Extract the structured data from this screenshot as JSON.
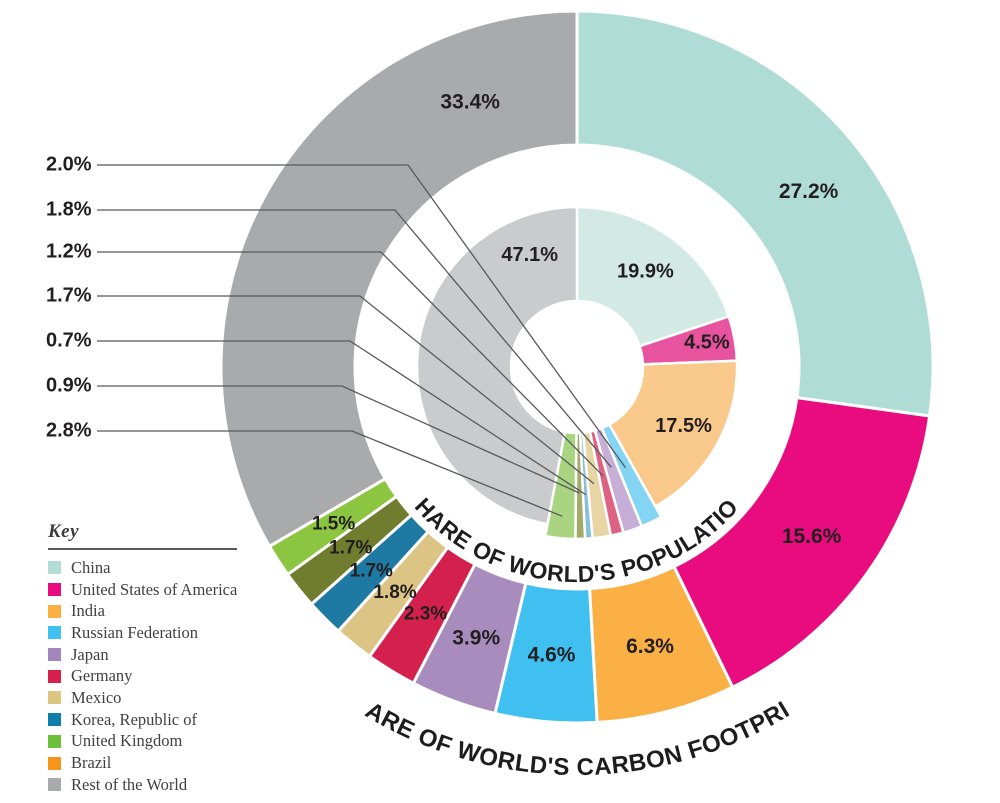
{
  "chart_data": {
    "type": "nested_donut",
    "inner_title": "SHARE OF WORLD'S POPULATION",
    "outer_title": "SHARE OF WORLD'S CARBON FOOTPRINT",
    "label_format": "percent_one_decimal",
    "legend_position": "bottom-left",
    "categories": [
      "China",
      "United States of America",
      "India",
      "Russian Federation",
      "Japan",
      "Germany",
      "Mexico",
      "Korea, Republic of",
      "United Kingdom",
      "Brazil",
      "Rest of the World"
    ],
    "series": [
      {
        "name": "SHARE OF WORLD'S POPULATION",
        "ring": "inner",
        "values": [
          19.9,
          4.5,
          17.5,
          2.0,
          1.8,
          1.2,
          1.7,
          0.7,
          0.9,
          2.8,
          47.1
        ],
        "colors": [
          "#d2e9e4",
          "#e7539e",
          "#f8c98b",
          "#84d4f4",
          "#c7aed6",
          "#de6283",
          "#e7d5a4",
          "#85c1dc",
          "#a5aa6a",
          "#a9d480",
          "#c9cbcd"
        ]
      },
      {
        "name": "SHARE OF WORLD'S CARBON FOOTPRINT",
        "ring": "outer",
        "values": [
          27.2,
          15.6,
          6.3,
          4.6,
          3.9,
          2.3,
          1.8,
          1.7,
          1.7,
          1.5,
          33.4
        ],
        "colors": [
          "#b0dcd6",
          "#e90c7e",
          "#fbb045",
          "#3fc0f0",
          "#a88cbe",
          "#d4204c",
          "#dcc485",
          "#1e79a3",
          "#707d2f",
          "#8cc640",
          "#a9aaac"
        ]
      }
    ],
    "callouts": {
      "labels": [
        "2.0%",
        "1.8%",
        "1.2%",
        "1.7%",
        "0.7%",
        "0.9%",
        "2.8%"
      ],
      "categories": [
        "Russian Federation",
        "Japan",
        "Germany",
        "Mexico",
        "Korea, Republic of",
        "United Kingdom",
        "Brazil"
      ]
    }
  },
  "legend": {
    "title": "Key",
    "items": [
      {
        "label": "China",
        "color": "#b2dcd6"
      },
      {
        "label": "United States of America",
        "color": "#e90c7e"
      },
      {
        "label": "India",
        "color": "#fbaf41"
      },
      {
        "label": "Russian Federation",
        "color": "#3fc0f0"
      },
      {
        "label": "Japan",
        "color": "#a287be"
      },
      {
        "label": "Germany",
        "color": "#d6204c"
      },
      {
        "label": "Mexico",
        "color": "#ddc681"
      },
      {
        "label": "Korea, Republic of",
        "color": "#0e7fa9"
      },
      {
        "label": "United Kingdom",
        "color": "#6cbf38"
      },
      {
        "label": "Brazil",
        "color": "#f7941e"
      },
      {
        "label": "Rest of the World",
        "color": "#a7a9ac"
      }
    ]
  },
  "colors": {
    "label_text": "#231f20",
    "leader_line": "#58595b",
    "legend_text": "#414042",
    "divider": "#58595b",
    "slice_stroke": "#ffffff",
    "background": "#ffffff"
  }
}
